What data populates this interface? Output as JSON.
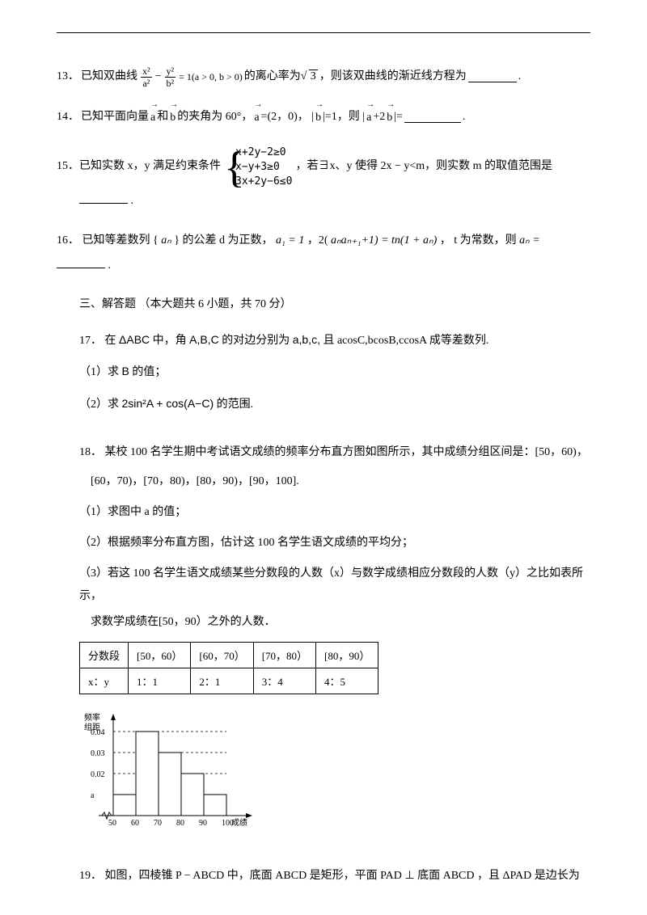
{
  "q13": {
    "num": "13．",
    "pre": "已知双曲线",
    "frac1_num": "x²",
    "frac1_den": "a²",
    "minus": "−",
    "frac2_num": "y²",
    "frac2_den": "b²",
    "eq_tail": "= 1(a > 0, b > 0)",
    "mid": "的离心率为",
    "sqrt_val": "3",
    "post": "，则该双曲线的渐近线方程为",
    "period": "."
  },
  "q14": {
    "num": "14．",
    "pre": "已知平面向量",
    "vec_a1": "a",
    "and": "和",
    "vec_b1": "b",
    "mid1": "的夹角为 60°，",
    "vec_a2": "a",
    "val_a": "=(2，0)，  |",
    "vec_b2": "b",
    "val_b": "|=1，则 |",
    "vec_a3": "a",
    "plus": "+2",
    "vec_b3": "b",
    "tail": "|=",
    "period": "."
  },
  "q15": {
    "num": "15．",
    "pre": "已知实数 x，y 满足约束条件",
    "sys_l1": "x+2y−2≥0",
    "sys_l2": "x−y+3≥0",
    "sys_l3": "3x+2y−6≤0",
    "post": "，若∃x、y 使得 2x − y<m，则实数 m 的取值范围是",
    "period": "."
  },
  "q16": {
    "num": "16．",
    "text_a": "已知等差数列 {",
    "an1": "aₙ",
    "text_b": "} 的公差 d 为正数，",
    "a1": "a₁ = 1",
    "text_c": "，2(",
    "expr": "aₙaₙ₊₁+1) = tn(1 + aₙ)",
    "text_d": "， t 为常数，则 ",
    "an2": "aₙ =",
    "period": "."
  },
  "section3": "三、解答题 （本大题共 6 小题，共 70 分）",
  "q17": {
    "num": "17．",
    "line1_a": "在",
    "line1_b": "ΔABC",
    "line1_c": "中，角",
    "line1_d": "A,B,C",
    "line1_e": "的对边分别为",
    "line1_f": "a,b,c,",
    "line1_g": " 且 acosC,bcosB,ccosA 成等差数列.",
    "sub1_a": "（1）求",
    "sub1_b": "B",
    "sub1_c": "的值；",
    "sub2_a": "（2）求",
    "sub2_b": "2sin²A + cos(A−C)",
    "sub2_c": "的范围."
  },
  "q18": {
    "num": "18．",
    "line1": "某校 100 名学生期中考试语文成绩的频率分布直方图如图所示，其中成绩分组区间是：[50，60)，",
    "line2": "[60，70)，[70，80)，[80，90)，[90，100].",
    "sub1": "（1）求图中 a 的值；",
    "sub2": "（2）根据频率分布直方图，估计这 100 名学生语文成绩的平均分；",
    "sub3": "（3）若这 100 名学生语文成绩某些分数段的人数（x）与数学成绩相应分数段的人数（y）之比如表所示，",
    "sub3b": "求数学成绩在[50，90）之外的人数．"
  },
  "table": {
    "headers": [
      "分数段",
      "[50，60）",
      "[60，70）",
      "[70，80）",
      "[80，90）"
    ],
    "row_label": "x：y",
    "cells": [
      "1：1",
      "2：1",
      "3：4",
      "4：5"
    ]
  },
  "chart": {
    "ylabel_top": "频率",
    "ylabel_bot": "组距",
    "yticks": [
      "0.04",
      "0.03",
      "0.02",
      "a"
    ],
    "xticks": [
      "50",
      "60",
      "70",
      "80",
      "90",
      "100"
    ],
    "xlabel": "成绩",
    "bars": [
      {
        "x": 50,
        "w": 10,
        "h": 1
      },
      {
        "x": 60,
        "w": 10,
        "h": 4
      },
      {
        "x": 70,
        "w": 10,
        "h": 3
      },
      {
        "x": 80,
        "w": 10,
        "h": 2
      },
      {
        "x": 90,
        "w": 10,
        "h": 1
      }
    ],
    "scale": {
      "x_origin": 42,
      "x_step": 28,
      "y_origin": 130,
      "y_step": 26
    },
    "colors": {
      "axis": "#000",
      "bar_fill": "#fff",
      "bar_stroke": "#000",
      "dash": "#000"
    }
  },
  "q19": {
    "num": "19．",
    "text": "如图，四棱锥 P − ABCD 中，底面 ABCD 是矩形，平面 PAD ⊥ 底面 ABCD ，且 ΔPAD 是边长为"
  }
}
